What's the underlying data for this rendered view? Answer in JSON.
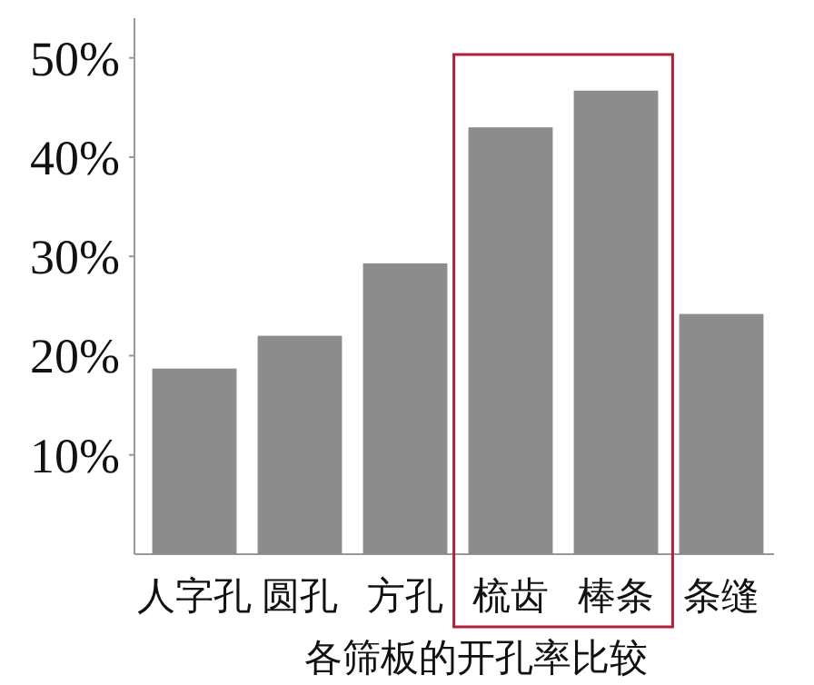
{
  "chart_data": {
    "type": "bar",
    "xlabel": "各筛板的开孔率比较",
    "categories": [
      "人字孔",
      "圆孔",
      "方孔",
      "梳齿",
      "棒条",
      "条缝"
    ],
    "values": [
      18.7,
      22,
      29.3,
      43,
      46.7,
      24.2
    ],
    "color": "#8c8c8c",
    "ylim": [
      0,
      54
    ],
    "yticks": [
      {
        "value": 10,
        "label": "10%"
      },
      {
        "value": 20,
        "label": "20%"
      },
      {
        "value": 30,
        "label": "30%"
      },
      {
        "value": 40,
        "label": "40%"
      },
      {
        "value": 50,
        "label": "50%"
      }
    ]
  }
}
